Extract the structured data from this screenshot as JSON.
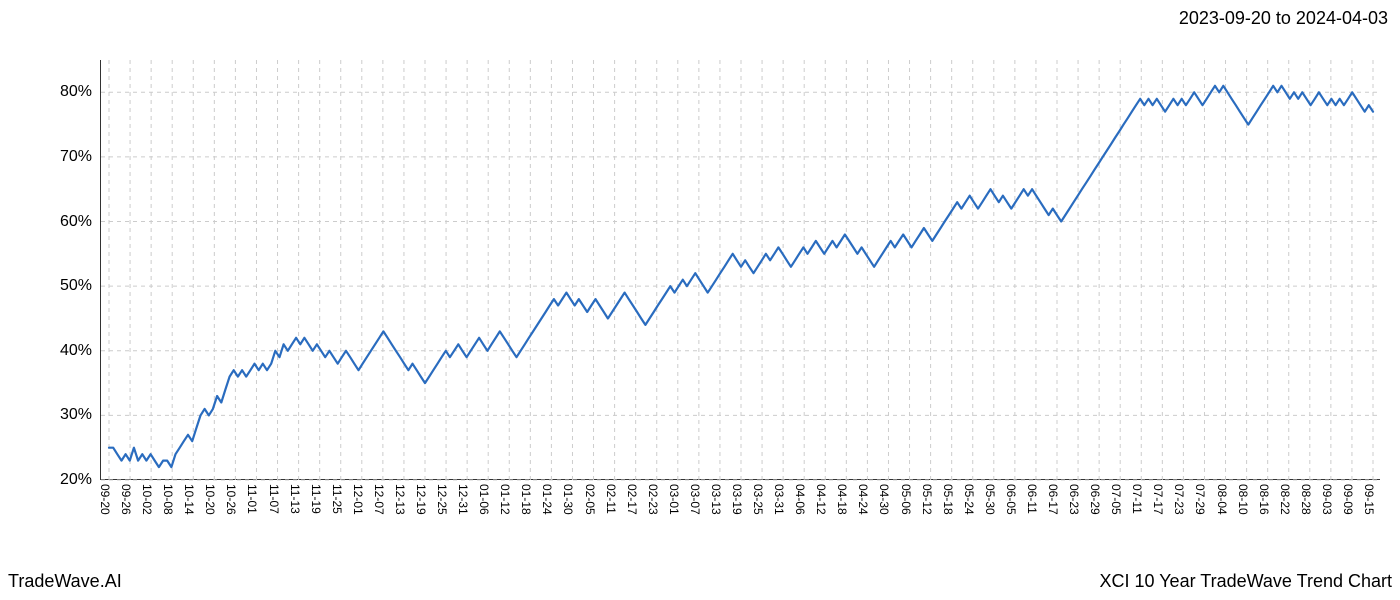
{
  "header": {
    "date_range": "2023-09-20 to 2024-04-03"
  },
  "footer": {
    "left": "TradeWave.AI",
    "right": "XCI 10 Year TradeWave Trend Chart"
  },
  "chart": {
    "type": "line",
    "background_color": "#ffffff",
    "grid_color": "#cccccc",
    "grid_dash": "4,4",
    "axis_color": "#333333",
    "line_color": "#2a6cbf",
    "line_width": 2.2,
    "highlight_band": {
      "color": "#90bc90",
      "opacity": 0.25,
      "x_start": "09-20",
      "x_end": "04-03"
    },
    "y_axis": {
      "min": 20,
      "max": 85,
      "ticks": [
        20,
        30,
        40,
        50,
        60,
        70,
        80
      ],
      "tick_labels": [
        "20%",
        "30%",
        "40%",
        "50%",
        "60%",
        "70%",
        "80%"
      ],
      "label_fontsize": 16
    },
    "x_axis": {
      "tick_labels": [
        "09-20",
        "09-26",
        "10-02",
        "10-08",
        "10-14",
        "10-20",
        "10-26",
        "11-01",
        "11-07",
        "11-13",
        "11-19",
        "11-25",
        "12-01",
        "12-07",
        "12-13",
        "12-19",
        "12-25",
        "12-31",
        "01-06",
        "01-12",
        "01-18",
        "01-24",
        "01-30",
        "02-05",
        "02-11",
        "02-17",
        "02-23",
        "03-01",
        "03-07",
        "03-13",
        "03-19",
        "03-25",
        "03-31",
        "04-06",
        "04-12",
        "04-18",
        "04-24",
        "04-30",
        "05-06",
        "05-12",
        "05-18",
        "05-24",
        "05-30",
        "06-05",
        "06-11",
        "06-17",
        "06-23",
        "06-29",
        "07-05",
        "07-11",
        "07-17",
        "07-23",
        "07-29",
        "08-04",
        "08-10",
        "08-16",
        "08-22",
        "08-28",
        "09-03",
        "09-09",
        "09-15"
      ],
      "label_fontsize": 12,
      "label_rotation": 90
    },
    "series": {
      "values": [
        25,
        25,
        24,
        23,
        24,
        23,
        25,
        23,
        24,
        23,
        24,
        23,
        22,
        23,
        23,
        22,
        24,
        25,
        26,
        27,
        26,
        28,
        30,
        31,
        30,
        31,
        33,
        32,
        34,
        36,
        37,
        36,
        37,
        36,
        37,
        38,
        37,
        38,
        37,
        38,
        40,
        39,
        41,
        40,
        41,
        42,
        41,
        42,
        41,
        40,
        41,
        40,
        39,
        40,
        39,
        38,
        39,
        40,
        39,
        38,
        37,
        38,
        39,
        40,
        41,
        42,
        43,
        42,
        41,
        40,
        39,
        38,
        37,
        38,
        37,
        36,
        35,
        36,
        37,
        38,
        39,
        40,
        39,
        40,
        41,
        40,
        39,
        40,
        41,
        42,
        41,
        40,
        41,
        42,
        43,
        42,
        41,
        40,
        39,
        40,
        41,
        42,
        43,
        44,
        45,
        46,
        47,
        48,
        47,
        48,
        49,
        48,
        47,
        48,
        47,
        46,
        47,
        48,
        47,
        46,
        45,
        46,
        47,
        48,
        49,
        48,
        47,
        46,
        45,
        44,
        45,
        46,
        47,
        48,
        49,
        50,
        49,
        50,
        51,
        50,
        51,
        52,
        51,
        50,
        49,
        50,
        51,
        52,
        53,
        54,
        55,
        54,
        53,
        54,
        53,
        52,
        53,
        54,
        55,
        54,
        55,
        56,
        55,
        54,
        53,
        54,
        55,
        56,
        55,
        56,
        57,
        56,
        55,
        56,
        57,
        56,
        57,
        58,
        57,
        56,
        55,
        56,
        55,
        54,
        53,
        54,
        55,
        56,
        57,
        56,
        57,
        58,
        57,
        56,
        57,
        58,
        59,
        58,
        57,
        58,
        59,
        60,
        61,
        62,
        63,
        62,
        63,
        64,
        63,
        62,
        63,
        64,
        65,
        64,
        63,
        64,
        63,
        62,
        63,
        64,
        65,
        64,
        65,
        64,
        63,
        62,
        61,
        62,
        61,
        60,
        61,
        62,
        63,
        64,
        65,
        66,
        67,
        68,
        69,
        70,
        71,
        72,
        73,
        74,
        75,
        76,
        77,
        78,
        79,
        78,
        79,
        78,
        79,
        78,
        77,
        78,
        79,
        78,
        79,
        78,
        79,
        80,
        79,
        78,
        79,
        80,
        81,
        80,
        81,
        80,
        79,
        78,
        77,
        76,
        75,
        76,
        77,
        78,
        79,
        80,
        81,
        80,
        81,
        80,
        79,
        80,
        79,
        80,
        79,
        78,
        79,
        80,
        79,
        78,
        79,
        78,
        79,
        78,
        79,
        80,
        79,
        78,
        77,
        78,
        77
      ]
    }
  }
}
